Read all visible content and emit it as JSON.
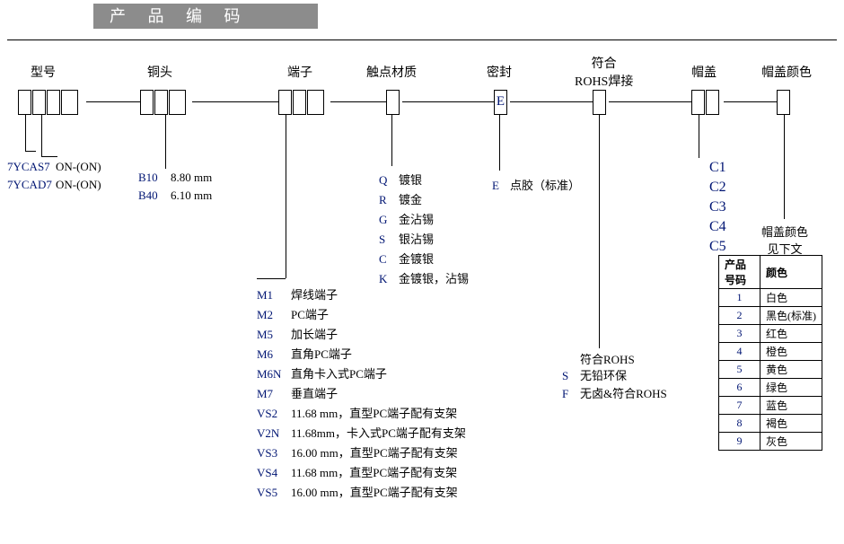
{
  "title": "产 品 编 码",
  "columns": {
    "model": "型号",
    "bushing": "铜头",
    "terminal": "端子",
    "contact": "触点材质",
    "sealing": "密封",
    "rohs": "符合\nROHS焊接",
    "cap": "帽盖",
    "capcolor": "帽盖颜色"
  },
  "sealBoxLetter": "E",
  "model": {
    "rows": [
      {
        "code": "7YCAS7",
        "desc": "ON-(ON)"
      },
      {
        "code": "7YCAD7",
        "desc": "ON-(ON)"
      }
    ]
  },
  "bushing": {
    "rows": [
      {
        "code": "B10",
        "desc": "8.80 mm"
      },
      {
        "code": "B40",
        "desc": "6.10 mm"
      }
    ]
  },
  "terminal": {
    "rows": [
      {
        "code": "M1",
        "desc": "焊线端子"
      },
      {
        "code": "M2",
        "desc": "PC端子"
      },
      {
        "code": "M5",
        "desc": "加长端子"
      },
      {
        "code": "M6",
        "desc": "直角PC端子"
      },
      {
        "code": "M6N",
        "desc": "直角卡入式PC端子"
      },
      {
        "code": "M7",
        "desc": "垂直端子"
      },
      {
        "code": "VS2",
        "desc": "11.68 mm，直型PC端子配有支架"
      },
      {
        "code": "V2N",
        "desc": "11.68mm，卡入式PC端子配有支架"
      },
      {
        "code": "VS3",
        "desc": "16.00 mm，直型PC端子配有支架"
      },
      {
        "code": "VS4",
        "desc": "11.68 mm，直型PC端子配有支架"
      },
      {
        "code": "VS5",
        "desc": "16.00 mm，直型PC端子配有支架"
      }
    ]
  },
  "contact": {
    "rows": [
      {
        "code": "Q",
        "desc": "镀银"
      },
      {
        "code": "R",
        "desc": "镀金"
      },
      {
        "code": "G",
        "desc": "金沾锡"
      },
      {
        "code": "S",
        "desc": "银沾锡"
      },
      {
        "code": "C",
        "desc": "金镀银"
      },
      {
        "code": "K",
        "desc": "金镀银，沾锡"
      }
    ]
  },
  "sealing": {
    "rows": [
      {
        "code": "E",
        "desc": "点胶（标准）"
      }
    ]
  },
  "rohs": {
    "heading": "符合ROHS",
    "rows": [
      {
        "code": "S",
        "desc": "无铅环保"
      },
      {
        "code": "F",
        "desc": "无卤&符合ROHS"
      }
    ]
  },
  "cap": {
    "rows": [
      {
        "code": "C1"
      },
      {
        "code": "C2"
      },
      {
        "code": "C3"
      },
      {
        "code": "C4"
      },
      {
        "code": "C5"
      }
    ]
  },
  "capcolor": {
    "heading": "帽盖颜色\n见下文",
    "tableHeaders": {
      "num": "产品号码",
      "color": "颜色"
    },
    "rows": [
      {
        "num": "1",
        "color": "白色"
      },
      {
        "num": "2",
        "color": "黑色(标准)"
      },
      {
        "num": "3",
        "color": "红色"
      },
      {
        "num": "4",
        "color": "橙色"
      },
      {
        "num": "5",
        "color": "黄色"
      },
      {
        "num": "6",
        "color": "绿色"
      },
      {
        "num": "7",
        "color": "蓝色"
      },
      {
        "num": "8",
        "color": "褐色"
      },
      {
        "num": "9",
        "color": "灰色"
      }
    ]
  },
  "style": {
    "blue": "#001573",
    "bannerBg": "#8c8c8c",
    "font": "SimSun",
    "baseSize": 13
  }
}
